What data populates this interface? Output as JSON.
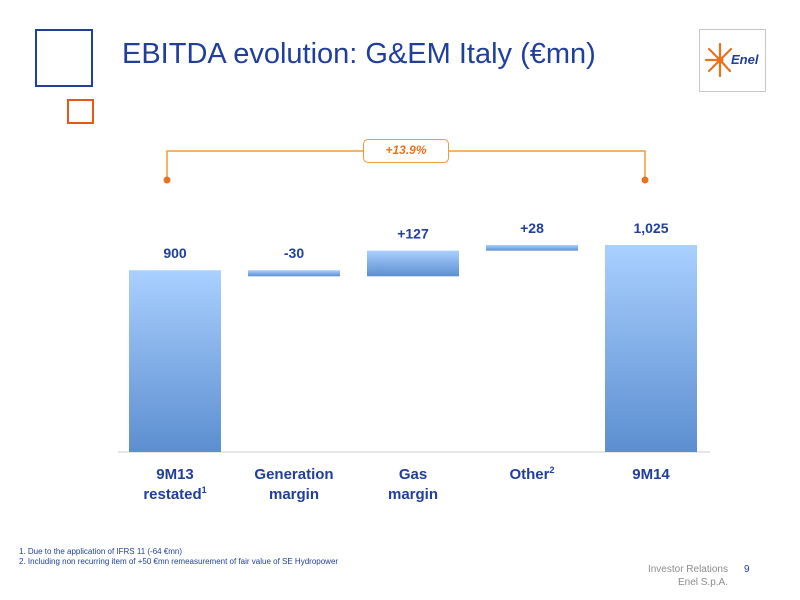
{
  "title": "EBITDA evolution: G&EM Italy (€mn)",
  "logo": {
    "text": "Enel"
  },
  "growth_badge": "+13.9%",
  "colors": {
    "title": "#1f3f9a",
    "bar_top": "#a9d0ff",
    "bar_bottom": "#5c8ed0",
    "bracket": "#f39a3c",
    "marker": "#e8731f"
  },
  "chart_data": {
    "type": "waterfall",
    "categories": [
      {
        "line1": "9M13",
        "line2": "restated",
        "sup": "1"
      },
      {
        "line1": "Generation",
        "line2": "margin",
        "sup": ""
      },
      {
        "line1": "Gas",
        "line2": "margin",
        "sup": ""
      },
      {
        "line1": "Other",
        "line2": "",
        "sup": "2"
      },
      {
        "line1": "9M14",
        "line2": "",
        "sup": ""
      }
    ],
    "values": [
      900,
      -30,
      127,
      28,
      1025
    ],
    "labels": [
      "900",
      "-30",
      "+127",
      "+28",
      "1,025"
    ],
    "kinds": [
      "total",
      "delta",
      "delta",
      "delta",
      "total"
    ]
  },
  "footnotes": [
    "1. Due to the application of IFRS 11 (-64 €mn)",
    "2. Including non recurring item of +50 €mn remeasurement of fair value of SE Hydropower"
  ],
  "footer": {
    "line1": "Investor Relations",
    "line2": "Enel S.p.A.",
    "page": "9"
  }
}
